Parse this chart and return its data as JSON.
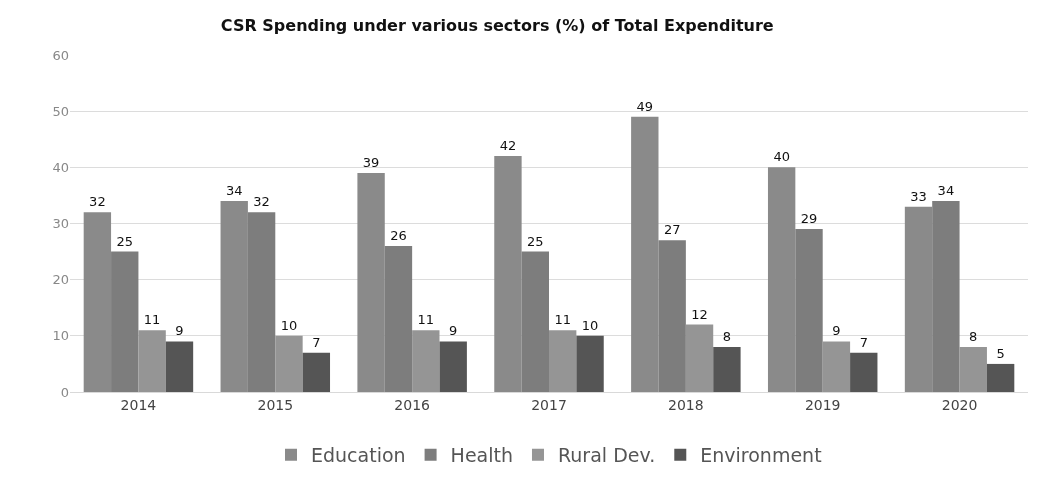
{
  "chart_data": {
    "type": "bar",
    "title": "CSR Spending under various sectors (%) of Total Expenditure",
    "categories": [
      "2014",
      "2015",
      "2016",
      "2017",
      "2018",
      "2019",
      "2020"
    ],
    "series": [
      {
        "name": "Education",
        "color": "#8a8a8a",
        "values": [
          32,
          34,
          39,
          42,
          49,
          40,
          33
        ]
      },
      {
        "name": "Health",
        "color": "#7d7d7d",
        "values": [
          25,
          32,
          26,
          25,
          27,
          29,
          34
        ]
      },
      {
        "name": "Rural Dev.",
        "color": "#959595",
        "values": [
          11,
          10,
          11,
          11,
          12,
          9,
          8
        ]
      },
      {
        "name": "Environment",
        "color": "#555555",
        "values": [
          9,
          7,
          9,
          10,
          8,
          7,
          5
        ]
      }
    ],
    "ylim": [
      0,
      60
    ],
    "yticks": [
      0,
      10,
      20,
      30,
      40,
      50,
      60
    ],
    "grid": "y",
    "legend": "bottom",
    "data_labels": true
  }
}
